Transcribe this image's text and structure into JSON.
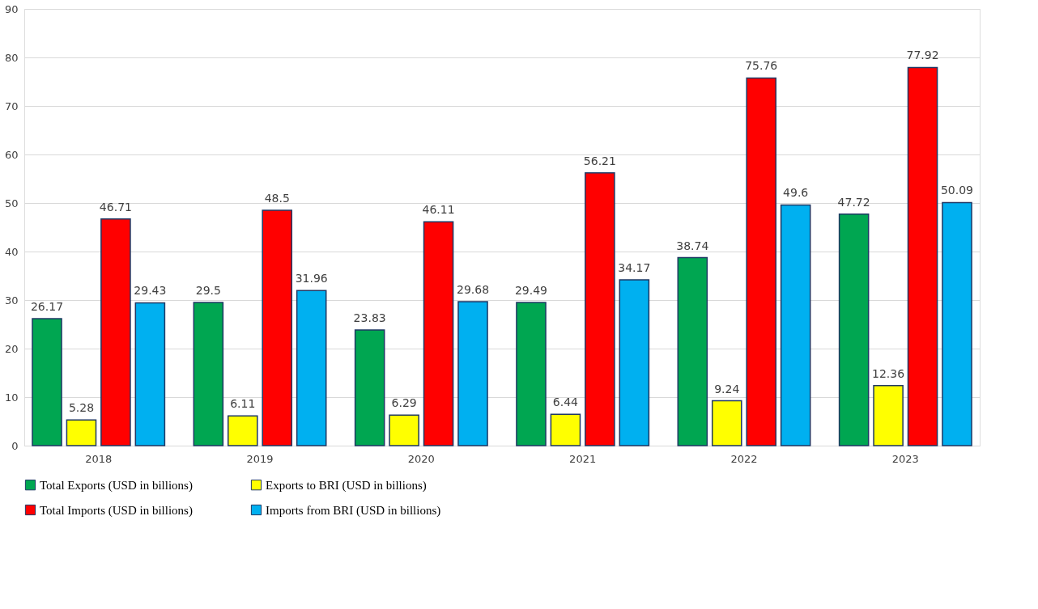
{
  "chart_data": {
    "type": "bar",
    "categories": [
      "2018",
      "2019",
      "2020",
      "2021",
      "2022",
      "2023"
    ],
    "series": [
      {
        "name": "Total Exports (USD in billions)",
        "color": "#00a651",
        "values": [
          26.17,
          29.5,
          23.83,
          29.49,
          38.74,
          47.72
        ]
      },
      {
        "name": "Exports to BRI (USD in billions)",
        "color": "#ffff00",
        "values": [
          5.28,
          6.11,
          6.29,
          6.44,
          9.24,
          12.36
        ]
      },
      {
        "name": "Total Imports (USD in billions)",
        "color": "#ff0000",
        "values": [
          46.71,
          48.5,
          46.11,
          56.21,
          75.76,
          77.92
        ]
      },
      {
        "name": "Imports from BRI (USD in billions)",
        "color": "#00b0f0",
        "values": [
          29.43,
          31.96,
          29.68,
          34.17,
          49.6,
          50.09
        ]
      }
    ],
    "ylim": [
      0,
      90
    ],
    "yticks": [
      0,
      10,
      20,
      30,
      40,
      50,
      60,
      70,
      80,
      90
    ],
    "grid": "y",
    "legend": "bottom",
    "data_labels": true
  }
}
